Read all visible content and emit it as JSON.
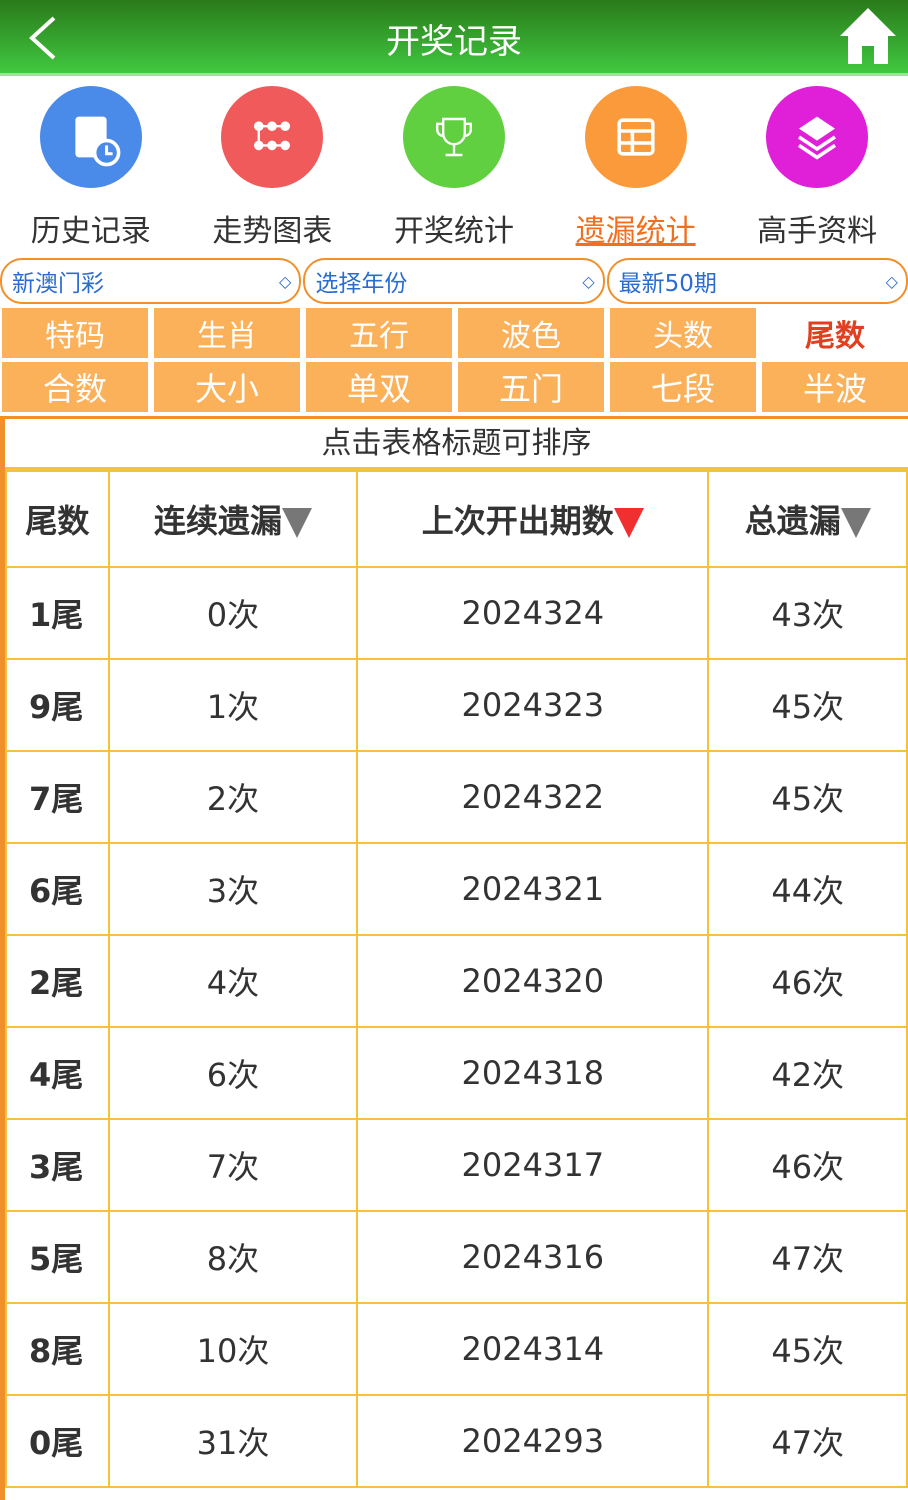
{
  "header": {
    "title": "开奖记录"
  },
  "nav": [
    {
      "label": "历史记录",
      "icon": "clipboard-clock-icon",
      "color": "#4a8ae8"
    },
    {
      "label": "走势图表",
      "icon": "chart-nodes-icon",
      "color": "#f05a5a"
    },
    {
      "label": "开奖统计",
      "icon": "trophy-icon",
      "color": "#60d040"
    },
    {
      "label": "遗漏统计",
      "icon": "table-grid-icon",
      "color": "#fb9a3a",
      "active": true
    },
    {
      "label": "高手资料",
      "icon": "layers-icon",
      "color": "#e020d8"
    }
  ],
  "selects": {
    "lottery": "新澳门彩",
    "year": "选择年份",
    "range": "最新50期"
  },
  "tabs_row1": [
    "特码",
    "生肖",
    "五行",
    "波色",
    "头数",
    "尾数"
  ],
  "tabs_row2": [
    "合数",
    "大小",
    "单双",
    "五门",
    "七段",
    "半波"
  ],
  "table": {
    "caption": "点击表格标题可排序",
    "headers": [
      "尾数",
      "连续遗漏",
      "上次开出期数",
      "总遗漏"
    ],
    "rows": [
      [
        "1尾",
        "0次",
        "2024324",
        "43次"
      ],
      [
        "9尾",
        "1次",
        "2024323",
        "45次"
      ],
      [
        "7尾",
        "2次",
        "2024322",
        "45次"
      ],
      [
        "6尾",
        "3次",
        "2024321",
        "44次"
      ],
      [
        "2尾",
        "4次",
        "2024320",
        "46次"
      ],
      [
        "4尾",
        "6次",
        "2024318",
        "42次"
      ],
      [
        "3尾",
        "7次",
        "2024317",
        "46次"
      ],
      [
        "5尾",
        "8次",
        "2024316",
        "47次"
      ],
      [
        "8尾",
        "10次",
        "2024314",
        "45次"
      ],
      [
        "0尾",
        "31次",
        "2024293",
        "47次"
      ]
    ]
  }
}
